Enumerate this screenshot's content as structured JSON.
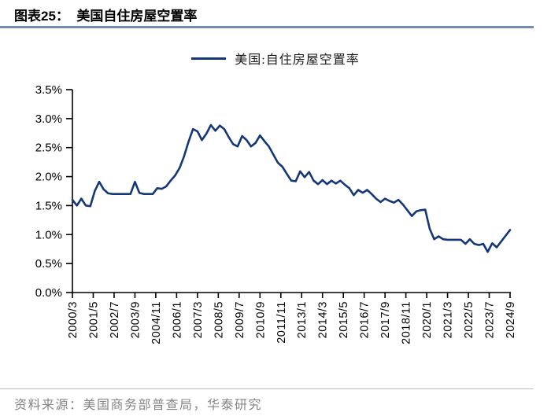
{
  "header": {
    "title": "图表25：  美国自住房屋空置率"
  },
  "legend": {
    "label": "美国:自住房屋空置率"
  },
  "colors": {
    "line": "#143778",
    "accent_rule": "#718cb0",
    "axis": "#000000",
    "footer_rule": "#c0c0c0",
    "source_text": "#858585"
  },
  "chart_data": {
    "type": "line",
    "series_name": "美国:自住房屋空置率",
    "line_color": "#143778",
    "grid": false,
    "legend_position": "top-center",
    "ylim": [
      0,
      3.5
    ],
    "y_tick_step": 0.5,
    "y_tick_labels": [
      "0.0%",
      "0.5%",
      "1.0%",
      "1.5%",
      "2.0%",
      "2.5%",
      "3.0%",
      "3.5%"
    ],
    "x_tick_labels": [
      "2000/3",
      "2001/5",
      "2002/7",
      "2003/9",
      "2004/11",
      "2006/1",
      "2007/3",
      "2008/5",
      "2009/7",
      "2010/9",
      "2011/11",
      "2013/1",
      "2014/3",
      "2015/5",
      "2016/7",
      "2017/9",
      "2018/11",
      "2020/1",
      "2021/3",
      "2022/5",
      "2023/7",
      "2024/9"
    ],
    "x_tick_step_months": 14,
    "x_start": "2000/3",
    "x_end": "2024/9",
    "x": [
      "2000/3",
      "2000/6",
      "2000/9",
      "2000/12",
      "2001/3",
      "2001/6",
      "2001/9",
      "2001/12",
      "2002/3",
      "2002/6",
      "2002/9",
      "2002/12",
      "2003/3",
      "2003/6",
      "2003/9",
      "2003/12",
      "2004/3",
      "2004/6",
      "2004/9",
      "2004/12",
      "2005/3",
      "2005/6",
      "2005/9",
      "2005/12",
      "2006/3",
      "2006/6",
      "2006/9",
      "2006/12",
      "2007/3",
      "2007/6",
      "2007/9",
      "2007/12",
      "2008/3",
      "2008/6",
      "2008/9",
      "2008/12",
      "2009/3",
      "2009/6",
      "2009/9",
      "2009/12",
      "2010/3",
      "2010/6",
      "2010/9",
      "2010/12",
      "2011/3",
      "2011/6",
      "2011/9",
      "2011/12",
      "2012/3",
      "2012/6",
      "2012/9",
      "2012/12",
      "2013/3",
      "2013/6",
      "2013/9",
      "2013/12",
      "2014/3",
      "2014/6",
      "2014/9",
      "2014/12",
      "2015/3",
      "2015/6",
      "2015/9",
      "2015/12",
      "2016/3",
      "2016/6",
      "2016/9",
      "2016/12",
      "2017/3",
      "2017/6",
      "2017/9",
      "2017/12",
      "2018/3",
      "2018/6",
      "2018/9",
      "2018/12",
      "2019/3",
      "2019/6",
      "2019/9",
      "2019/12",
      "2020/3",
      "2020/6",
      "2020/9",
      "2020/12",
      "2021/3",
      "2021/6",
      "2021/9",
      "2021/12",
      "2022/3",
      "2022/6",
      "2022/9",
      "2022/12",
      "2023/3",
      "2023/6",
      "2023/9",
      "2023/12",
      "2024/3",
      "2024/6",
      "2024/9"
    ],
    "values": [
      1.6,
      1.5,
      1.62,
      1.5,
      1.49,
      1.75,
      1.91,
      1.78,
      1.71,
      1.7,
      1.7,
      1.7,
      1.7,
      1.7,
      1.91,
      1.72,
      1.7,
      1.7,
      1.7,
      1.8,
      1.79,
      1.83,
      1.93,
      2.02,
      2.15,
      2.35,
      2.6,
      2.82,
      2.78,
      2.63,
      2.74,
      2.89,
      2.79,
      2.88,
      2.82,
      2.68,
      2.56,
      2.52,
      2.7,
      2.63,
      2.52,
      2.58,
      2.71,
      2.61,
      2.52,
      2.38,
      2.24,
      2.17,
      2.05,
      1.93,
      1.92,
      2.09,
      1.99,
      2.08,
      1.93,
      1.87,
      1.94,
      1.87,
      1.93,
      1.88,
      1.93,
      1.86,
      1.8,
      1.68,
      1.77,
      1.72,
      1.77,
      1.7,
      1.62,
      1.56,
      1.62,
      1.58,
      1.55,
      1.6,
      1.52,
      1.42,
      1.32,
      1.4,
      1.42,
      1.43,
      1.1,
      0.92,
      0.97,
      0.92,
      0.91,
      0.91,
      0.91,
      0.91,
      0.84,
      0.92,
      0.84,
      0.82,
      0.84,
      0.7,
      0.85,
      0.78,
      0.88,
      0.98,
      1.08
    ]
  },
  "footer": {
    "source": "资料来源：美国商务部普查局，华泰研究"
  }
}
